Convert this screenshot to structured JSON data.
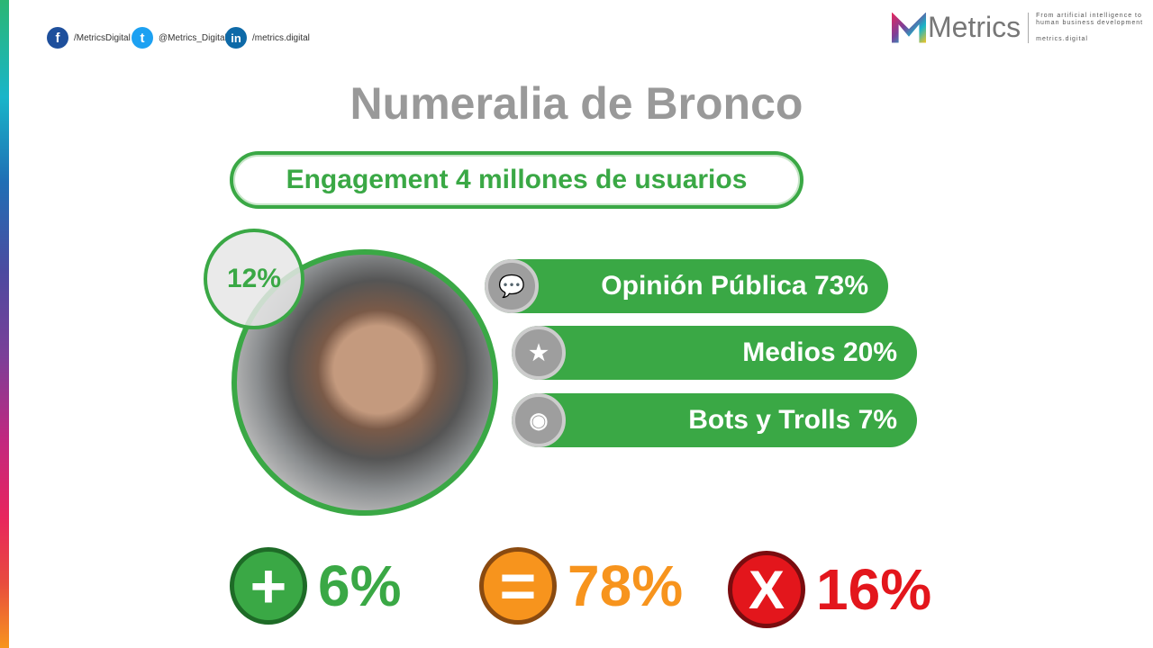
{
  "social": {
    "facebook": "/MetricsDigital",
    "twitter": "@Metrics_Digital",
    "linkedin": "/metrics.digital"
  },
  "logo": {
    "name": "Metrics",
    "tagline1": "From artificial intelligence to",
    "tagline2": "human business development",
    "url": "metrics.digital"
  },
  "title": "Numeralia de Bronco",
  "engagement": "Engagement 4 millones de usuarios",
  "photo_percent": "12%",
  "bars": [
    {
      "label": "Opinión Pública 73%",
      "icon": "chat-user-icon",
      "value": 73
    },
    {
      "label": "Medios 20%",
      "icon": "user-star-icon",
      "value": 20
    },
    {
      "label": "Bots y Trolls 7%",
      "icon": "robot-icon",
      "value": 7
    }
  ],
  "sentiment": [
    {
      "label": "6%",
      "icon": "plus-icon",
      "color": "#3aa845"
    },
    {
      "label": "78%",
      "icon": "equals-icon",
      "color": "#f7941d"
    },
    {
      "label": "16%",
      "icon": "x-icon",
      "color": "#e3161c"
    }
  ],
  "colors": {
    "green": "#3aa845",
    "title": "#999999"
  }
}
